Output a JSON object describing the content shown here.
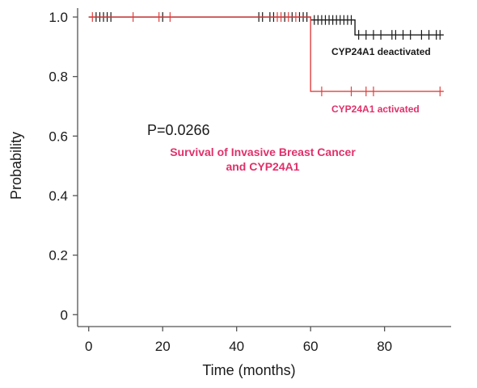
{
  "chart_data": {
    "type": "line",
    "subtitle_lines": [
      "Survival of Invasive Breast Cancer",
      "and CYP24A1"
    ],
    "annotation": "P=0.0266",
    "xlabel": "Time (months)",
    "ylabel": "Probability",
    "xlim": [
      -3,
      98
    ],
    "ylim": [
      -0.04,
      1.03
    ],
    "x_ticks": [
      0,
      20,
      40,
      60,
      80
    ],
    "y_ticks": [
      0,
      0.2,
      0.4,
      0.6,
      0.8,
      1.0
    ],
    "y_tick_labels": [
      "0",
      "0.2",
      "0.4",
      "0.6",
      "0.8",
      "1.0"
    ],
    "grid": false,
    "series": [
      {
        "name": "CYP24A1 deactivated",
        "color": "#1a1a1a",
        "steps": [
          [
            0,
            1.0
          ],
          [
            60,
            0.99
          ],
          [
            72,
            0.94
          ],
          [
            96,
            0.94
          ]
        ],
        "censored": [
          2,
          3,
          4,
          5,
          6,
          20,
          46,
          47,
          49,
          50,
          53,
          55,
          57,
          58,
          59,
          61,
          62,
          63,
          64,
          65,
          66,
          67,
          68,
          69,
          70,
          71,
          73,
          75,
          77,
          79,
          82,
          83,
          85,
          87,
          90,
          92,
          94,
          95
        ]
      },
      {
        "name": "CYP24A1 activated",
        "color": "#e04040",
        "steps": [
          [
            0,
            1.0
          ],
          [
            60,
            0.75
          ],
          [
            96,
            0.75
          ]
        ],
        "censored": [
          1,
          12,
          19,
          22,
          51,
          52,
          54,
          56,
          63,
          71,
          75,
          77,
          95
        ]
      }
    ]
  }
}
